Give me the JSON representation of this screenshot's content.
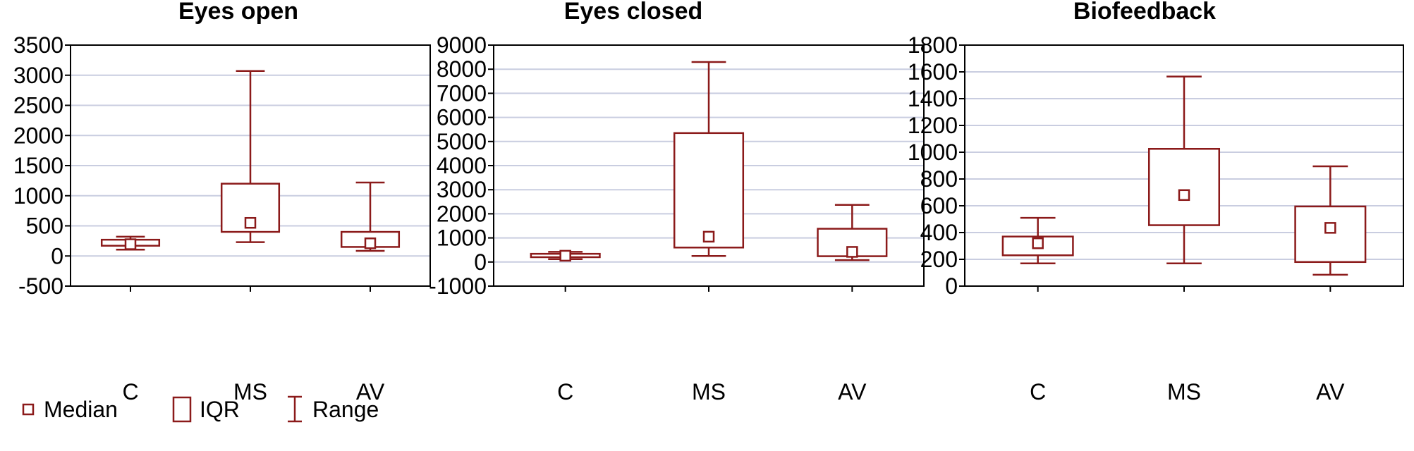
{
  "chart_data": [
    {
      "type": "box",
      "title": "Eyes open",
      "categories": [
        "C",
        "MS",
        "AV"
      ],
      "ylim": [
        -500,
        3500
      ],
      "yticks": [
        -500,
        0,
        500,
        1000,
        1500,
        2000,
        2500,
        3000,
        3500
      ],
      "grid": true,
      "boxes": [
        {
          "category": "C",
          "min": 105,
          "q1": 170,
          "median": 195,
          "q3": 270,
          "max": 320
        },
        {
          "category": "MS",
          "min": 230,
          "q1": 400,
          "median": 550,
          "q3": 1200,
          "max": 3070
        },
        {
          "category": "AV",
          "min": 85,
          "q1": 150,
          "median": 210,
          "q3": 400,
          "max": 1220
        }
      ]
    },
    {
      "type": "box",
      "title": "Eyes closed",
      "categories": [
        "C",
        "MS",
        "AV"
      ],
      "ylim": [
        -1000,
        9000
      ],
      "yticks": [
        -1000,
        0,
        1000,
        2000,
        3000,
        4000,
        5000,
        6000,
        7000,
        8000,
        9000
      ],
      "grid": true,
      "boxes": [
        {
          "category": "C",
          "min": 120,
          "q1": 200,
          "median": 260,
          "q3": 340,
          "max": 420
        },
        {
          "category": "MS",
          "min": 250,
          "q1": 600,
          "median": 1050,
          "q3": 5350,
          "max": 8300
        },
        {
          "category": "AV",
          "min": 80,
          "q1": 240,
          "median": 420,
          "q3": 1380,
          "max": 2370
        }
      ]
    },
    {
      "type": "box",
      "title": "Biofeedback",
      "categories": [
        "C",
        "MS",
        "AV"
      ],
      "ylim": [
        0,
        1800
      ],
      "yticks": [
        0,
        200,
        400,
        600,
        800,
        1000,
        1200,
        1400,
        1600,
        1800
      ],
      "grid": true,
      "boxes": [
        {
          "category": "C",
          "min": 170,
          "q1": 230,
          "median": 320,
          "q3": 370,
          "max": 510
        },
        {
          "category": "MS",
          "min": 170,
          "q1": 455,
          "median": 680,
          "q3": 1025,
          "max": 1565
        },
        {
          "category": "AV",
          "min": 85,
          "q1": 180,
          "median": 435,
          "q3": 595,
          "max": 895
        }
      ]
    }
  ],
  "legend": {
    "placement": "bottom-left",
    "items": [
      {
        "symbol": "median",
        "label": "Median"
      },
      {
        "symbol": "iqr",
        "label": "IQR"
      },
      {
        "symbol": "range",
        "label": "Range"
      }
    ]
  },
  "colors": {
    "box": "#8b1a1a",
    "grid": "#c9cde0",
    "axis": "#000000"
  }
}
